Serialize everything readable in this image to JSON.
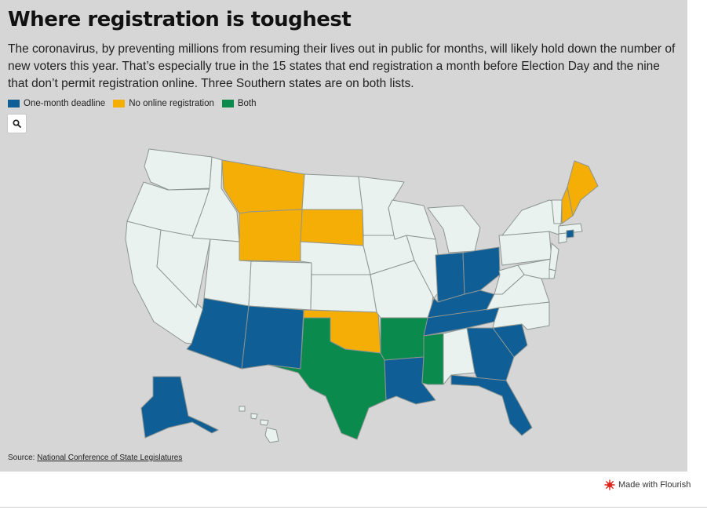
{
  "header": {
    "title": "Where registration is toughest",
    "subtitle": "The coronavirus, by preventing millions from resuming their lives out in public for months, will likely hold down the number of new voters this year. That’s especially true in the 15 states that end registration a month before Election Day and the nine that don’t permit registration online. Three Southern states are on both lists."
  },
  "legend": {
    "items": [
      {
        "label": "One-month deadline",
        "color": "#0f5e95"
      },
      {
        "label": "No online registration",
        "color": "#f5ae05"
      },
      {
        "label": "Both",
        "color": "#0b8a4e"
      }
    ]
  },
  "controls": {
    "search_icon": "search-icon"
  },
  "map": {
    "default_color": "#eaf2ef",
    "categories": {
      "one_month_deadline": [
        "Arizona",
        "New Mexico",
        "Louisiana",
        "Tennessee",
        "Kentucky",
        "Indiana",
        "Ohio",
        "Georgia",
        "South Carolina",
        "Florida",
        "Alaska",
        "Rhode Island"
      ],
      "no_online_registration": [
        "Montana",
        "Wyoming",
        "South Dakota",
        "Oklahoma",
        "New Hampshire",
        "Maine"
      ],
      "both": [
        "Texas",
        "Arkansas",
        "Mississippi"
      ]
    }
  },
  "source": {
    "label": "Source: ",
    "link_text": "National Conference of State Legislatures"
  },
  "footer": {
    "credit": "Made with Flourish"
  }
}
